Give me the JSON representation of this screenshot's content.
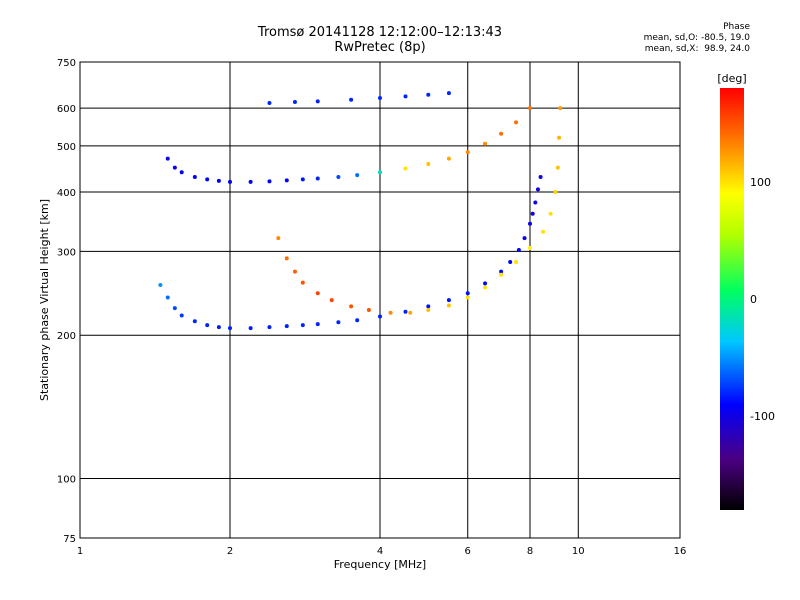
{
  "chart_data": {
    "type": "scatter",
    "title": "Tromsø 20141128 12:12:00–12:13:43",
    "subtitle": "RwPretec (8p)",
    "stats": {
      "heading": "Phase",
      "line1": "mean, sd,O: -80.5, 19.0",
      "line2": "mean, sd,X:  98.9, 24.0"
    },
    "xlabel": "Frequency [MHz]",
    "ylabel": "Stationary phase Virtual Height [km]",
    "xscale": "log",
    "yscale": "log",
    "xlim": [
      1,
      16
    ],
    "ylim": [
      75,
      750
    ],
    "xticks": [
      1,
      2,
      4,
      6,
      8,
      10,
      16
    ],
    "yticks": [
      75,
      100,
      200,
      300,
      400,
      500,
      600,
      750
    ],
    "grid_x": [
      2,
      4,
      6,
      8,
      10
    ],
    "grid_y": [
      100,
      200,
      300,
      400,
      500,
      600
    ],
    "grid": true,
    "colorbar": {
      "label": "[deg]",
      "range": [
        -180,
        180
      ],
      "ticks": [
        100,
        0,
        -100
      ]
    },
    "series": [
      {
        "x": [
          1.45,
          1.5,
          1.55,
          1.6,
          1.7,
          1.8,
          1.9,
          2.0,
          2.2,
          2.4,
          2.6,
          2.8,
          3.0,
          3.3,
          3.6,
          4.0,
          4.5,
          5.0,
          5.5,
          6.0,
          6.5,
          7.0,
          7.3,
          7.6,
          7.8,
          8.0,
          8.1,
          8.2,
          8.3,
          8.4
        ],
        "y": [
          255,
          240,
          228,
          220,
          214,
          210,
          208,
          207,
          207,
          208,
          209,
          210,
          211,
          213,
          215,
          219,
          224,
          230,
          237,
          245,
          257,
          272,
          285,
          302,
          320,
          343,
          360,
          380,
          405,
          430
        ],
        "phase": [
          -50,
          -60,
          -70,
          -75,
          -80,
          -80,
          -82,
          -82,
          -82,
          -82,
          -82,
          -80,
          -80,
          -80,
          -80,
          -82,
          -82,
          -85,
          -85,
          -85,
          -88,
          -88,
          -90,
          -92,
          -95,
          -98,
          -100,
          -100,
          -100,
          -100
        ]
      },
      {
        "x": [
          2.5,
          2.6,
          2.7,
          2.8,
          3.0,
          3.2,
          3.5,
          3.8,
          4.2,
          4.6,
          5.0,
          5.5,
          6.0,
          6.5,
          7.0,
          7.5,
          8.0,
          8.5,
          8.8,
          9.0,
          9.1,
          9.15,
          9.2
        ],
        "y": [
          320,
          290,
          272,
          258,
          245,
          237,
          230,
          226,
          223,
          223,
          226,
          231,
          240,
          252,
          268,
          285,
          305,
          330,
          360,
          400,
          450,
          520,
          600
        ],
        "phase": [
          130,
          140,
          145,
          150,
          155,
          155,
          150,
          150,
          130,
          120,
          110,
          110,
          100,
          100,
          100,
          100,
          95,
          100,
          100,
          105,
          110,
          115,
          125
        ]
      },
      {
        "x": [
          1.5,
          1.55,
          1.6,
          1.7,
          1.8,
          1.9,
          2.0,
          2.2,
          2.4,
          2.6,
          2.8,
          3.0,
          3.3,
          3.6,
          4.0,
          4.5,
          5.0,
          5.5,
          6.0,
          6.5,
          7.0,
          7.5,
          8.0
        ],
        "y": [
          470,
          450,
          440,
          430,
          425,
          422,
          420,
          420,
          421,
          423,
          425,
          427,
          430,
          434,
          440,
          448,
          458,
          470,
          485,
          505,
          530,
          560,
          600
        ],
        "phase": [
          -100,
          -95,
          -95,
          -90,
          -90,
          -90,
          -90,
          -90,
          -90,
          -90,
          -85,
          -80,
          -70,
          -60,
          -20,
          100,
          110,
          120,
          130,
          130,
          140,
          140,
          140
        ]
      },
      {
        "x": [
          2.4,
          2.7,
          3.0,
          3.5,
          4.0,
          4.5,
          5.0,
          5.5
        ],
        "y": [
          615,
          618,
          620,
          625,
          630,
          635,
          640,
          645
        ],
        "phase": [
          -80,
          -80,
          -80,
          -80,
          -80,
          -80,
          -80,
          -80
        ]
      }
    ]
  }
}
